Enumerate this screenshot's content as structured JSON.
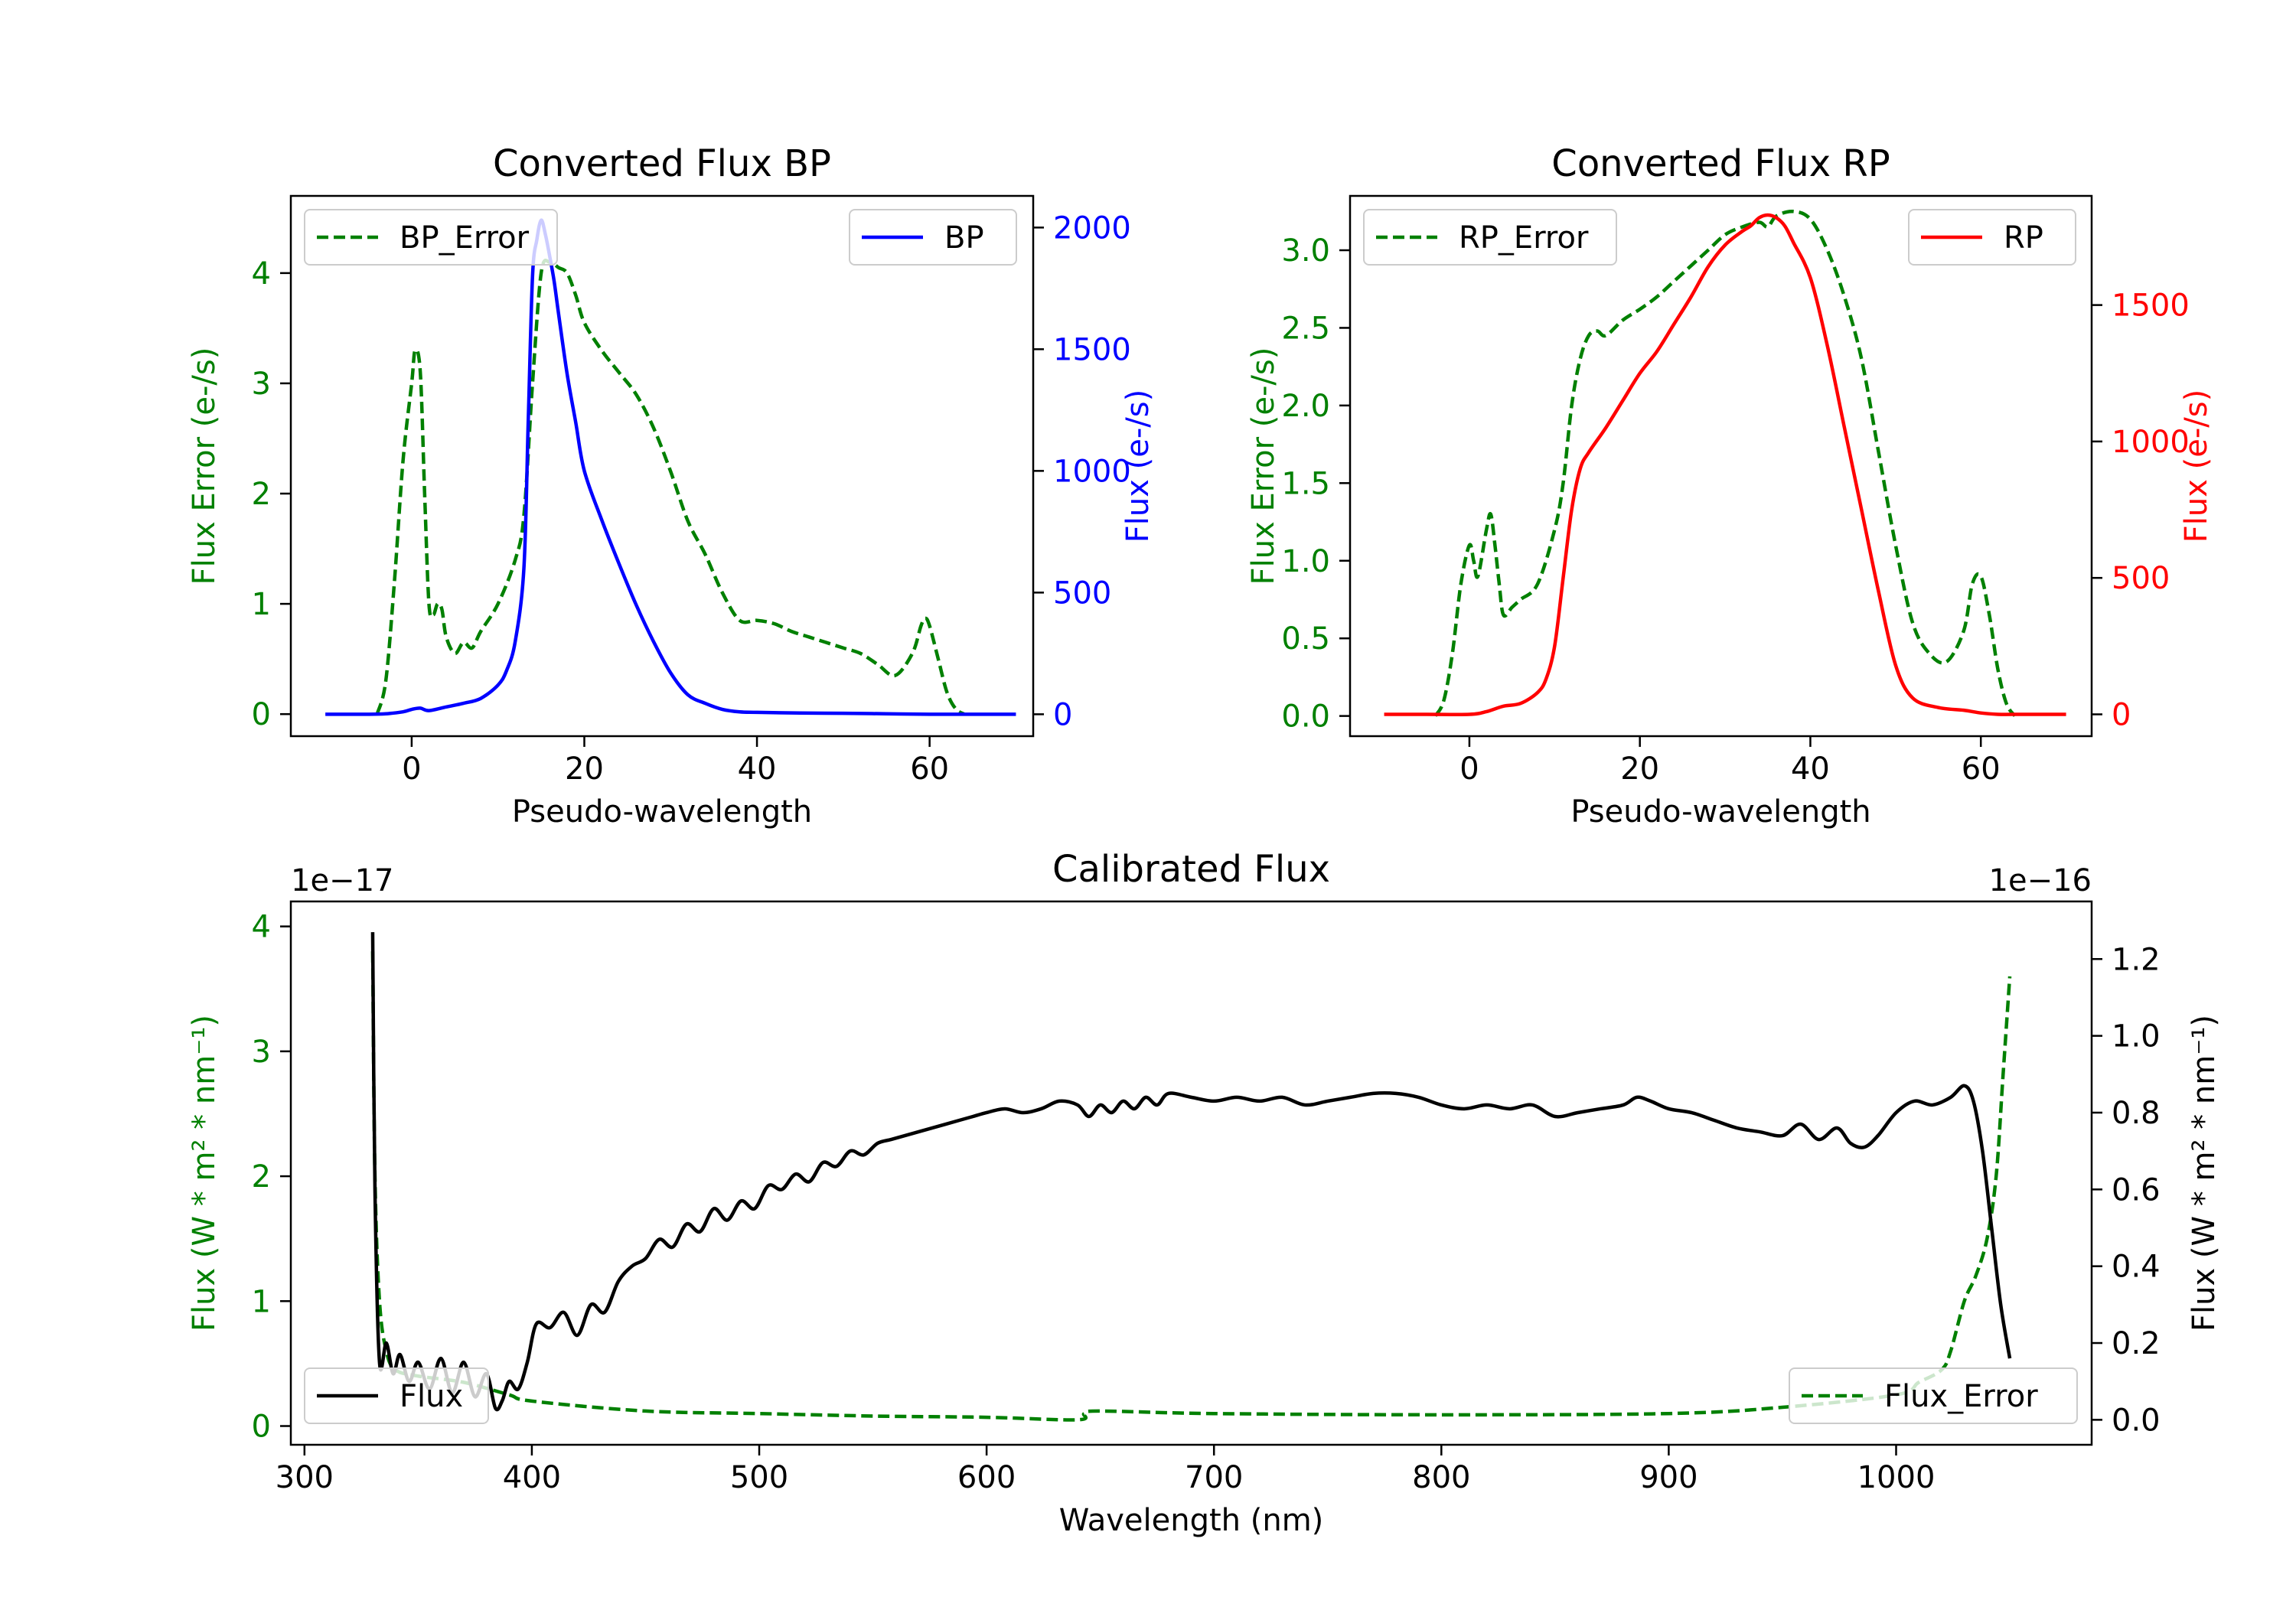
{
  "chart_data": [
    {
      "id": "bp",
      "type": "line",
      "title": "Converted Flux BP",
      "xlabel": "Pseudo-wavelength",
      "ylabel_left": "Flux Error (e-/s)",
      "ylabel_right": "Flux (e-/s)",
      "xlim": [
        -14,
        72
      ],
      "ylim_left": [
        -0.2,
        4.7
      ],
      "ylim_right": [
        -90,
        2130
      ],
      "xticks": [
        0,
        20,
        40,
        60
      ],
      "yticks_left": [
        0,
        1,
        2,
        3,
        4
      ],
      "yticks_right": [
        0,
        500,
        1000,
        1500,
        2000
      ],
      "left_tick_color": "#008000",
      "right_tick_color": "#0000ff",
      "legend_left": {
        "label": "BP_Error",
        "placement": "upper-left"
      },
      "legend_right": {
        "label": "BP",
        "placement": "upper-right"
      },
      "series": [
        {
          "name": "BP_Error",
          "axis": "left",
          "color": "#008000",
          "dash": true,
          "x": [
            -4,
            -3,
            -2,
            -1,
            0,
            0.4,
            1,
            1.5,
            2,
            2.5,
            3,
            3.5,
            4,
            5,
            6,
            7,
            8,
            10,
            12,
            13,
            14,
            15,
            16,
            17,
            18,
            19,
            20,
            22,
            24,
            26,
            28,
            30,
            32,
            34,
            36,
            38,
            40,
            42,
            44,
            46,
            48,
            50,
            52,
            54,
            56,
            58,
            59,
            59.5,
            60,
            61,
            62,
            63,
            64
          ],
          "y": [
            0,
            0.3,
            1.2,
            2.3,
            3.0,
            3.3,
            3.1,
            2.0,
            1.0,
            0.9,
            1.0,
            0.95,
            0.7,
            0.55,
            0.65,
            0.6,
            0.75,
            1.0,
            1.4,
            1.8,
            3.0,
            4.0,
            4.1,
            4.05,
            4.0,
            3.8,
            3.55,
            3.3,
            3.1,
            2.9,
            2.6,
            2.2,
            1.75,
            1.45,
            1.1,
            0.85,
            0.85,
            0.82,
            0.75,
            0.7,
            0.65,
            0.6,
            0.55,
            0.45,
            0.35,
            0.55,
            0.8,
            0.87,
            0.8,
            0.5,
            0.2,
            0.05,
            0.0
          ]
        },
        {
          "name": "BP",
          "axis": "right",
          "color": "#0000ff",
          "dash": false,
          "x": [
            -10,
            -5,
            -3,
            -1,
            0,
            1,
            2,
            4,
            6,
            8,
            10,
            11,
            12,
            13,
            13.5,
            14,
            14.5,
            15,
            15.5,
            16,
            16.5,
            17,
            18,
            19,
            20,
            22,
            24,
            26,
            28,
            30,
            32,
            34,
            36,
            38,
            40,
            45,
            50,
            55,
            60,
            65,
            70
          ],
          "y": [
            0,
            0,
            2,
            10,
            20,
            25,
            15,
            30,
            45,
            65,
            120,
            180,
            300,
            600,
            1200,
            1800,
            1950,
            2030,
            1970,
            1880,
            1780,
            1650,
            1400,
            1200,
            1000,
            800,
            620,
            450,
            300,
            170,
            80,
            45,
            20,
            10,
            8,
            5,
            4,
            2,
            0,
            0,
            0
          ]
        }
      ]
    },
    {
      "id": "rp",
      "type": "line",
      "title": "Converted Flux RP",
      "xlabel": "Pseudo-wavelength",
      "ylabel_left": "Flux Error (e-/s)",
      "ylabel_right": "Flux (e-/s)",
      "xlim": [
        -14,
        73
      ],
      "ylim_left": [
        -0.13,
        3.35
      ],
      "ylim_right": [
        -80,
        1900
      ],
      "xticks": [
        0,
        20,
        40,
        60
      ],
      "yticks_left": [
        0.0,
        0.5,
        1.0,
        1.5,
        2.0,
        2.5,
        3.0
      ],
      "yticks_right": [
        0,
        500,
        1000,
        1500
      ],
      "left_tick_color": "#008000",
      "right_tick_color": "#ff0000",
      "legend_left": {
        "label": "RP_Error",
        "placement": "upper-left"
      },
      "legend_right": {
        "label": "RP",
        "placement": "upper-right"
      },
      "series": [
        {
          "name": "RP_Error",
          "axis": "left",
          "color": "#008000",
          "dash": true,
          "x": [
            -4,
            -3,
            -2,
            -1,
            0,
            0.5,
            1,
            2,
            2.5,
            3,
            3.5,
            4,
            5,
            6,
            8,
            10,
            11,
            12,
            13,
            14,
            15,
            16,
            18,
            20,
            22,
            24,
            26,
            28,
            30,
            32,
            34,
            35,
            36,
            38,
            40,
            42,
            44,
            46,
            48,
            50,
            52,
            54,
            56,
            58,
            59,
            60,
            61,
            62,
            63,
            64
          ],
          "y": [
            0,
            0.1,
            0.4,
            0.85,
            1.1,
            1.0,
            0.9,
            1.2,
            1.3,
            1.1,
            0.85,
            0.65,
            0.7,
            0.75,
            0.85,
            1.2,
            1.5,
            2.0,
            2.3,
            2.45,
            2.48,
            2.45,
            2.55,
            2.62,
            2.7,
            2.8,
            2.9,
            3.0,
            3.1,
            3.15,
            3.18,
            3.15,
            3.22,
            3.25,
            3.2,
            3.0,
            2.7,
            2.3,
            1.7,
            1.1,
            0.6,
            0.4,
            0.35,
            0.55,
            0.85,
            0.9,
            0.65,
            0.3,
            0.08,
            0.0
          ]
        },
        {
          "name": "RP",
          "axis": "right",
          "color": "#ff0000",
          "dash": false,
          "x": [
            -10,
            -5,
            0,
            2,
            4,
            6,
            8,
            9,
            10,
            11,
            12,
            13,
            14,
            16,
            18,
            20,
            22,
            24,
            26,
            28,
            30,
            32,
            33,
            34,
            35,
            36,
            37,
            38,
            40,
            42,
            44,
            46,
            48,
            50,
            52,
            55,
            58,
            60,
            62,
            65,
            70
          ],
          "y": [
            0,
            0,
            0,
            10,
            30,
            40,
            80,
            130,
            250,
            500,
            750,
            900,
            960,
            1050,
            1150,
            1250,
            1330,
            1430,
            1530,
            1640,
            1720,
            1770,
            1790,
            1820,
            1830,
            1820,
            1790,
            1730,
            1600,
            1350,
            1050,
            750,
            450,
            180,
            60,
            25,
            15,
            5,
            0,
            0,
            0
          ]
        }
      ]
    },
    {
      "id": "cal",
      "type": "line",
      "title": "Calibrated Flux",
      "xlabel": "Wavelength (nm)",
      "ylabel_left": "Flux (W * m² * nm⁻¹)",
      "ylabel_right": "Flux (W * m² * nm⁻¹)",
      "left_offset": "1e−17",
      "right_offset": "1e−16",
      "xlim": [
        294,
        1086
      ],
      "ylim_left": [
        -0.15,
        4.2
      ],
      "ylim_right": [
        -0.065,
        1.35
      ],
      "xticks": [
        300,
        400,
        500,
        600,
        700,
        800,
        900,
        1000
      ],
      "yticks_left": [
        0,
        1,
        2,
        3,
        4
      ],
      "yticks_right": [
        0.0,
        0.2,
        0.4,
        0.6,
        0.8,
        1.0,
        1.2
      ],
      "left_tick_color": "#008000",
      "right_tick_color": "#000000",
      "legend_left": {
        "label": "Flux",
        "placement": "lower-left"
      },
      "legend_right": {
        "label": "Flux_Error",
        "placement": "lower-right"
      },
      "series": [
        {
          "name": "Flux_Error",
          "axis": "left",
          "color": "#008000",
          "dash": true,
          "x": [
            330,
            331,
            333,
            336,
            340,
            350,
            370,
            390,
            400,
            450,
            500,
            550,
            600,
            640,
            643,
            650,
            700,
            800,
            900,
            950,
            1000,
            1010,
            1020,
            1024,
            1030,
            1035,
            1040,
            1044,
            1047,
            1050
          ],
          "y": [
            3.8,
            2.0,
            1.0,
            0.6,
            0.45,
            0.4,
            0.35,
            0.25,
            0.2,
            0.12,
            0.1,
            0.08,
            0.07,
            0.05,
            0.1,
            0.12,
            0.1,
            0.09,
            0.1,
            0.15,
            0.25,
            0.35,
            0.45,
            0.6,
            1.0,
            1.2,
            1.5,
            2.0,
            2.8,
            3.6
          ]
        },
        {
          "name": "Flux",
          "axis": "right",
          "color": "#000000",
          "dash": false,
          "x": [
            330,
            331,
            333,
            336,
            339,
            342,
            346,
            350,
            355,
            360,
            365,
            370,
            375,
            380,
            384,
            387,
            390,
            394,
            398,
            402,
            408,
            414,
            420,
            426,
            432,
            438,
            444,
            450,
            456,
            462,
            468,
            474,
            480,
            486,
            492,
            498,
            504,
            510,
            516,
            522,
            528,
            534,
            540,
            546,
            552,
            558,
            564,
            570,
            576,
            582,
            588,
            594,
            600,
            608,
            616,
            624,
            632,
            640,
            645,
            650,
            655,
            660,
            665,
            670,
            675,
            680,
            690,
            700,
            710,
            720,
            730,
            740,
            750,
            760,
            770,
            780,
            790,
            800,
            810,
            820,
            830,
            840,
            850,
            860,
            870,
            880,
            886,
            892,
            900,
            910,
            920,
            930,
            940,
            950,
            958,
            966,
            974,
            980,
            986,
            992,
            1000,
            1008,
            1016,
            1024,
            1030,
            1034,
            1038,
            1042,
            1046,
            1050
          ],
          "y": [
            1.27,
            0.6,
            0.15,
            0.2,
            0.12,
            0.17,
            0.1,
            0.15,
            0.08,
            0.16,
            0.07,
            0.15,
            0.06,
            0.12,
            0.03,
            0.05,
            0.1,
            0.08,
            0.15,
            0.25,
            0.24,
            0.28,
            0.22,
            0.3,
            0.28,
            0.36,
            0.4,
            0.42,
            0.47,
            0.45,
            0.51,
            0.49,
            0.55,
            0.52,
            0.57,
            0.55,
            0.61,
            0.6,
            0.64,
            0.62,
            0.67,
            0.66,
            0.7,
            0.69,
            0.72,
            0.73,
            0.74,
            0.75,
            0.76,
            0.77,
            0.78,
            0.79,
            0.8,
            0.81,
            0.8,
            0.81,
            0.83,
            0.82,
            0.79,
            0.82,
            0.8,
            0.83,
            0.81,
            0.84,
            0.82,
            0.85,
            0.84,
            0.83,
            0.84,
            0.83,
            0.84,
            0.82,
            0.83,
            0.84,
            0.85,
            0.85,
            0.84,
            0.82,
            0.81,
            0.82,
            0.81,
            0.82,
            0.79,
            0.8,
            0.81,
            0.82,
            0.84,
            0.83,
            0.81,
            0.8,
            0.78,
            0.76,
            0.75,
            0.74,
            0.77,
            0.73,
            0.76,
            0.72,
            0.71,
            0.74,
            0.8,
            0.83,
            0.82,
            0.84,
            0.87,
            0.83,
            0.7,
            0.5,
            0.3,
            0.16
          ]
        }
      ]
    }
  ]
}
